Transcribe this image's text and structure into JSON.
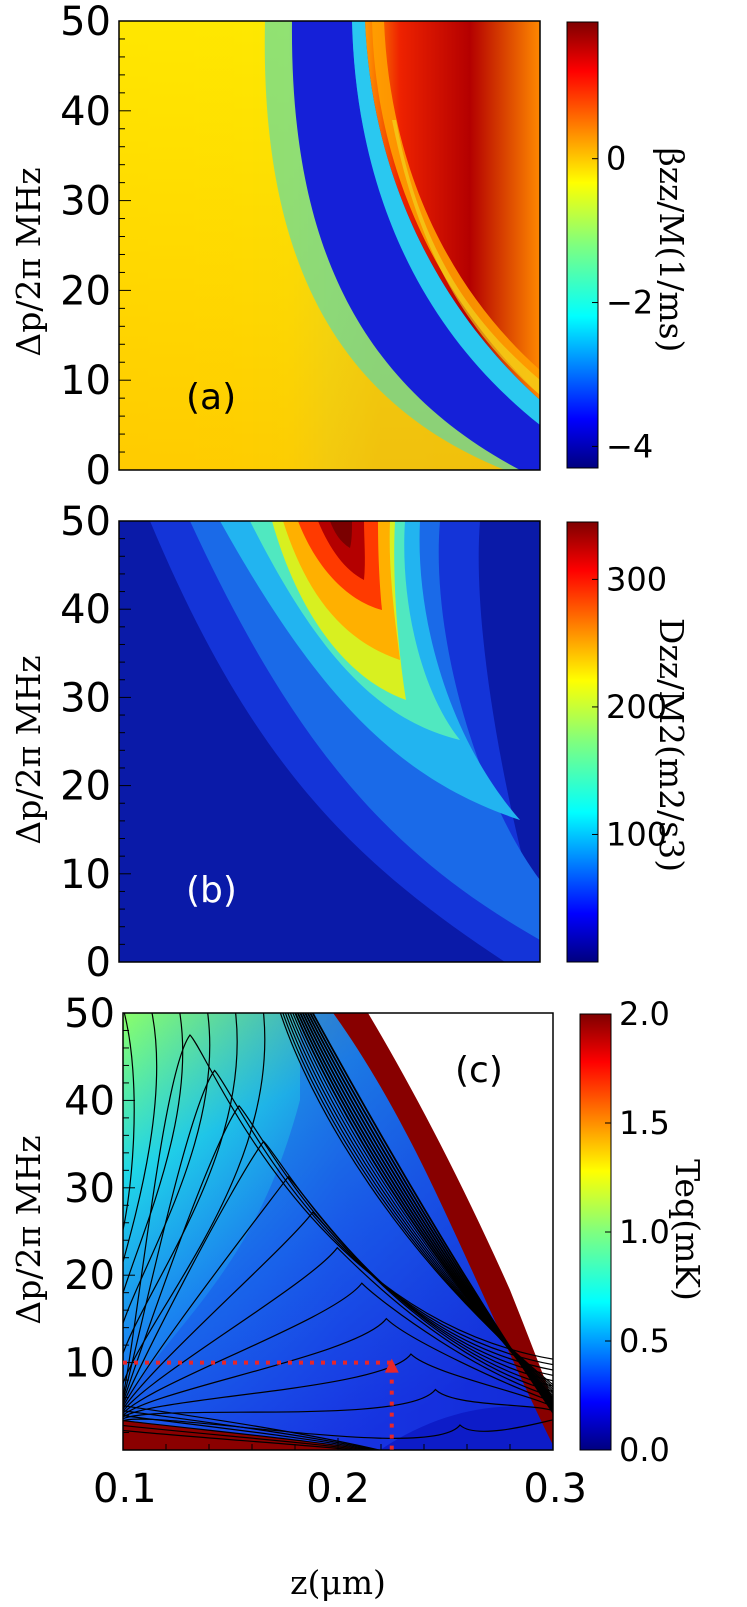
{
  "chart_data": [
    {
      "type": "heatmap",
      "panel_label": "(a)",
      "ylabel": "Δp/2π MHz",
      "yticks": [
        "0",
        "10",
        "20",
        "30",
        "40",
        "50"
      ],
      "ylim": [
        0,
        50
      ],
      "xlim": [
        0.1,
        0.3
      ],
      "colorbar_label": "βzz/M(1/ms)",
      "colorbar_ticks": [
        "0",
        "−2",
        "−4"
      ],
      "colorbar_range": [
        -4.3,
        1.9
      ],
      "colormap": "jet"
    },
    {
      "type": "heatmap",
      "panel_label": "(b)",
      "ylabel": "Δp/2π MHz",
      "yticks": [
        "0",
        "10",
        "20",
        "30",
        "40",
        "50"
      ],
      "ylim": [
        0,
        50
      ],
      "xlim": [
        0.1,
        0.3
      ],
      "colorbar_label": "Dzz/M2(m2/s3)",
      "colorbar_ticks": [
        "300",
        "200",
        "100"
      ],
      "colorbar_range": [
        0,
        345
      ],
      "colormap": "jet"
    },
    {
      "type": "heatmap",
      "panel_label": "(c)",
      "ylabel": "Δp/2π MHz",
      "xlabel": "z(μm)",
      "yticks": [
        "10",
        "20",
        "30",
        "40",
        "50"
      ],
      "xticks": [
        "0.1",
        "0.2",
        "0.3"
      ],
      "ylim": [
        0,
        50
      ],
      "xlim": [
        0.1,
        0.3
      ],
      "colorbar_label": "Teq(mK)",
      "colorbar_ticks": [
        "2.0",
        "1.5",
        "1.0",
        "0.5",
        "0.0"
      ],
      "colorbar_range": [
        0,
        2.0
      ],
      "colormap": "jet",
      "contours": true,
      "marker": {
        "x": 0.225,
        "y": 10,
        "color": "#e8262a"
      }
    }
  ]
}
